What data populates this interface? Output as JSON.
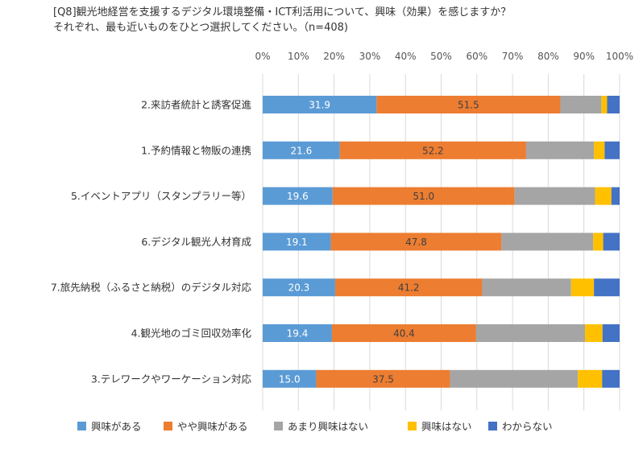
{
  "header": {
    "line1": "[Q8]観光地経営を支援するデジタル環境整備・ICT利活用について、興味（効果）を感じますか？",
    "line2": "それぞれ、最も近いものをひとつ選択してください。（n=408)"
  },
  "chart_data": {
    "type": "bar",
    "orientation": "horizontal",
    "stacked": true,
    "percent_stacked": true,
    "xlim": [
      0,
      100
    ],
    "x_tick_labels": [
      "0%",
      "10%",
      "20%",
      "30%",
      "40%",
      "50%",
      "60%",
      "70%",
      "80%",
      "90%",
      "100%"
    ],
    "x_axis_position": "top",
    "legend_position": "bottom",
    "grid": "vertical",
    "categories": [
      "2.来訪者統計と誘客促進",
      "1.予約情報と物販の連携",
      "5.イベントアプリ（スタンプラリー等）",
      "6.デジタル観光人材育成",
      "7.旅先納税（ふるさと納税）のデジタル対応",
      "4.観光地のゴミ回収効率化",
      "3.テレワークやワーケーション対応"
    ],
    "series": [
      {
        "name": "興味がある",
        "color": "#5B9BD5",
        "labeled": true,
        "values": [
          31.9,
          21.6,
          19.6,
          19.1,
          20.3,
          19.4,
          15.0
        ]
      },
      {
        "name": "やや興味がある",
        "color": "#ED7D31",
        "labeled": true,
        "values": [
          51.5,
          52.2,
          51.0,
          47.8,
          41.2,
          40.4,
          37.5
        ]
      },
      {
        "name": "あまり興味はない",
        "color": "#A5A5A5",
        "labeled": false,
        "values": [
          11.5,
          19.0,
          22.5,
          25.7,
          24.9,
          30.5,
          35.8
        ]
      },
      {
        "name": "興味はない",
        "color": "#FFC000",
        "labeled": false,
        "values": [
          1.6,
          3.0,
          4.6,
          2.8,
          6.4,
          4.9,
          6.8
        ]
      },
      {
        "name": "わからない",
        "color": "#4472C4",
        "labeled": false,
        "values": [
          3.5,
          4.2,
          2.3,
          4.6,
          7.2,
          4.8,
          4.9
        ]
      }
    ]
  }
}
